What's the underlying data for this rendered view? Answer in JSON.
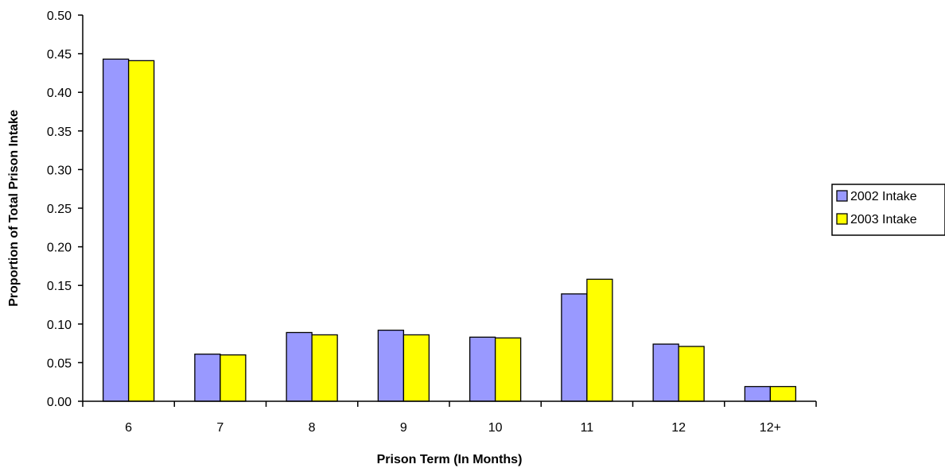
{
  "chart_data": {
    "type": "bar",
    "title": "",
    "xlabel": "Prison Term (In Months)",
    "ylabel": "Proportion of Total Prison Intake",
    "categories": [
      "6",
      "7",
      "8",
      "9",
      "10",
      "11",
      "12",
      "12+"
    ],
    "series": [
      {
        "name": "2002 Intake",
        "color": "#9999ff",
        "values": [
          0.443,
          0.061,
          0.089,
          0.092,
          0.083,
          0.139,
          0.074,
          0.019
        ]
      },
      {
        "name": "2003 Intake",
        "color": "#ffff00",
        "values": [
          0.441,
          0.06,
          0.086,
          0.086,
          0.082,
          0.158,
          0.071,
          0.019
        ]
      }
    ],
    "ylim": [
      0,
      0.5
    ],
    "yticks": [
      "0.00",
      "0.05",
      "0.10",
      "0.15",
      "0.20",
      "0.25",
      "0.30",
      "0.35",
      "0.40",
      "0.45",
      "0.50"
    ],
    "grid": false,
    "legend": "right"
  }
}
